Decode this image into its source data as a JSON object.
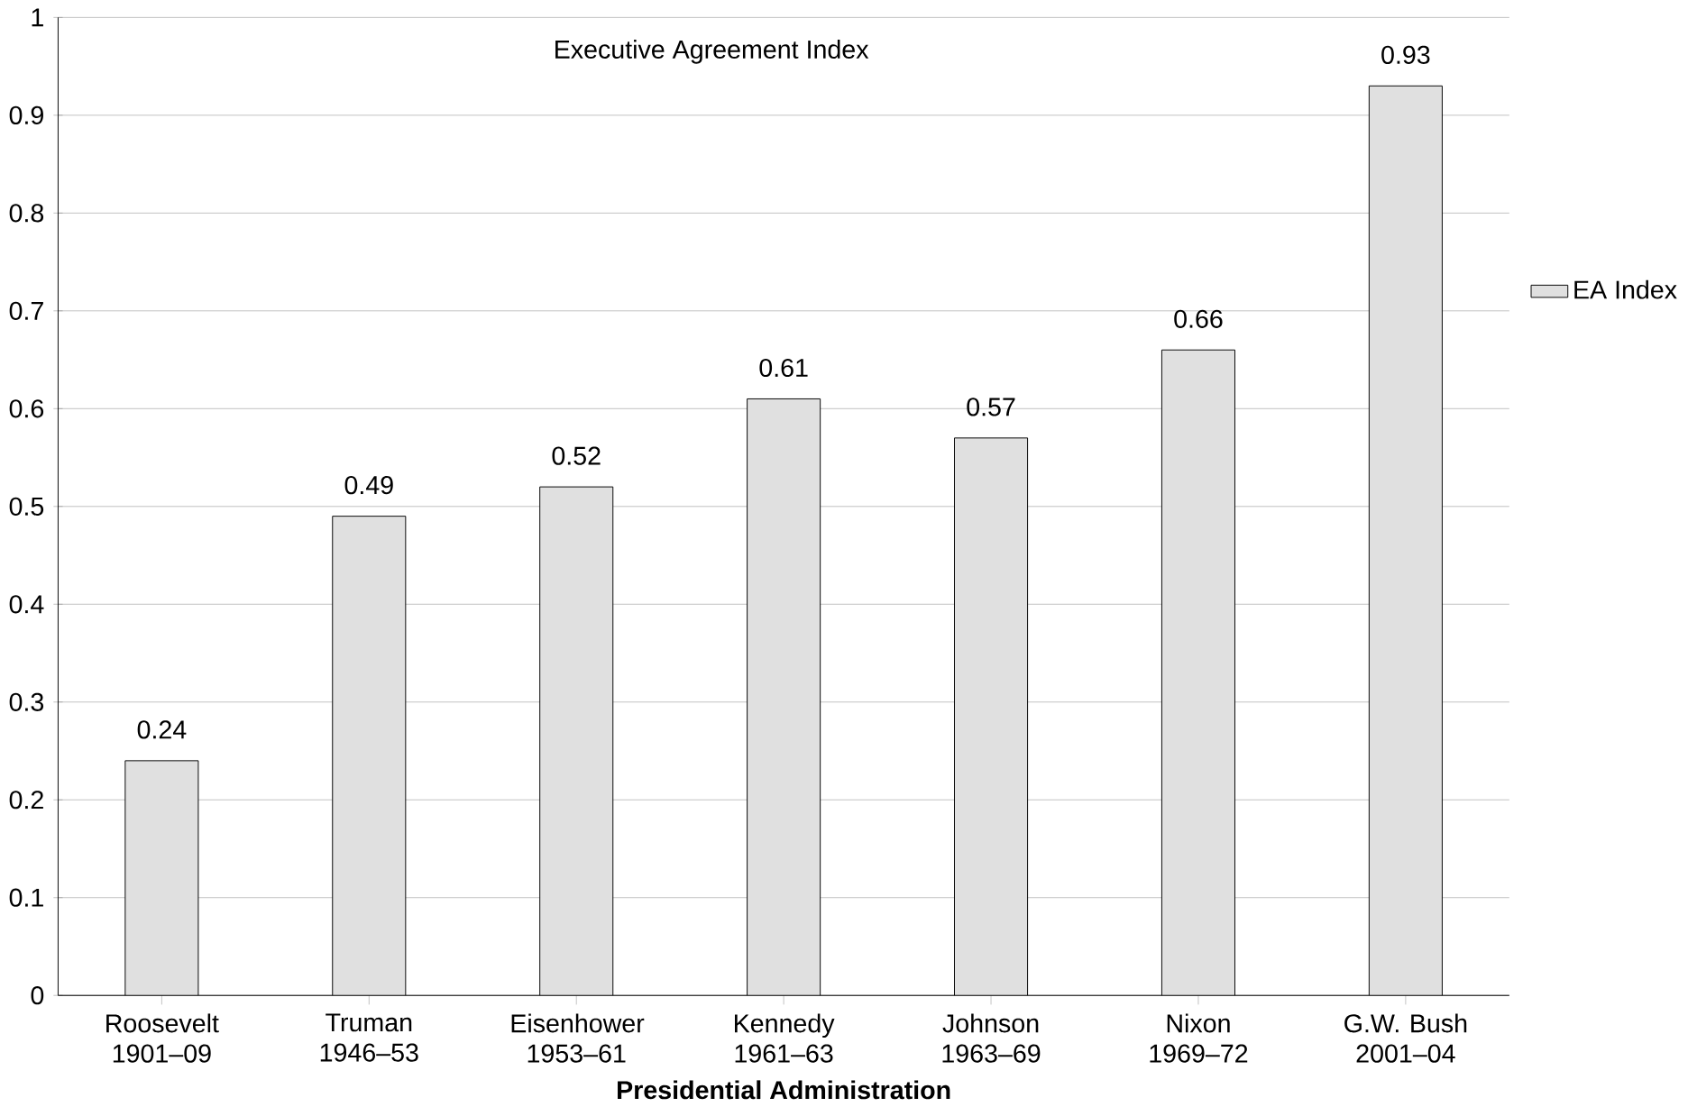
{
  "chart_data": {
    "type": "bar",
    "title": "Executive Agreement Index",
    "xlabel": "Presidential Administration",
    "categories": [
      "Roosevelt 1901–09",
      "Truman 1946–53",
      "Eisenhower 1953–61",
      "Kennedy 1961–63",
      "Johnson 1963–69",
      "Nixon 1969–72",
      "G.W. Bush 2001–04"
    ],
    "series": [
      {
        "name": "EA Index",
        "color": "#e0e0e0",
        "values": [
          0.24,
          0.49,
          0.52,
          0.61,
          0.57,
          0.66,
          0.93
        ]
      }
    ],
    "ylim": [
      0,
      1
    ],
    "yticks": [
      0,
      0.1,
      0.2,
      0.3,
      0.4,
      0.5,
      0.6,
      0.7,
      0.8,
      0.9,
      1
    ],
    "grid": "y",
    "legend": "right",
    "data_labels": true
  }
}
